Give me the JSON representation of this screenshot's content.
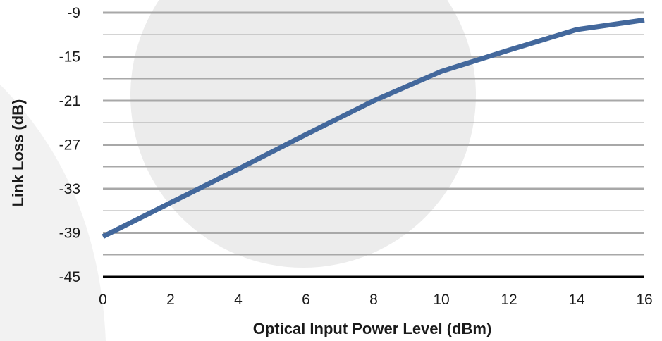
{
  "chart_data": {
    "type": "line",
    "title": "",
    "xlabel": "Optical Input Power Level (dBm)",
    "ylabel": "Link Loss (dB)",
    "xlim": [
      0,
      16
    ],
    "ylim": [
      -45,
      -9
    ],
    "x_ticks": [
      0,
      2,
      4,
      6,
      8,
      10,
      12,
      14,
      16
    ],
    "y_ticks": [
      -9,
      -15,
      -21,
      -27,
      -33,
      -39,
      -45
    ],
    "x_tick_labels": [
      "0",
      "2",
      "4",
      "6",
      "8",
      "10",
      "12",
      "14",
      "16"
    ],
    "y_tick_labels": [
      "-9",
      "-15",
      "-21",
      "-27",
      "-33",
      "-39",
      "-45"
    ],
    "grid": true,
    "minor_grid": true,
    "line_color": "#43689c",
    "gridline_color": "#a8a8a8",
    "axis_color": "#000000",
    "series": [
      {
        "x": [
          0,
          2,
          4,
          6,
          8,
          10,
          12,
          14,
          16
        ],
        "y": [
          -39.5,
          -34.9,
          -30.3,
          -25.6,
          -21.0,
          -17.0,
          -14.1,
          -11.3,
          -10.0
        ]
      }
    ]
  }
}
